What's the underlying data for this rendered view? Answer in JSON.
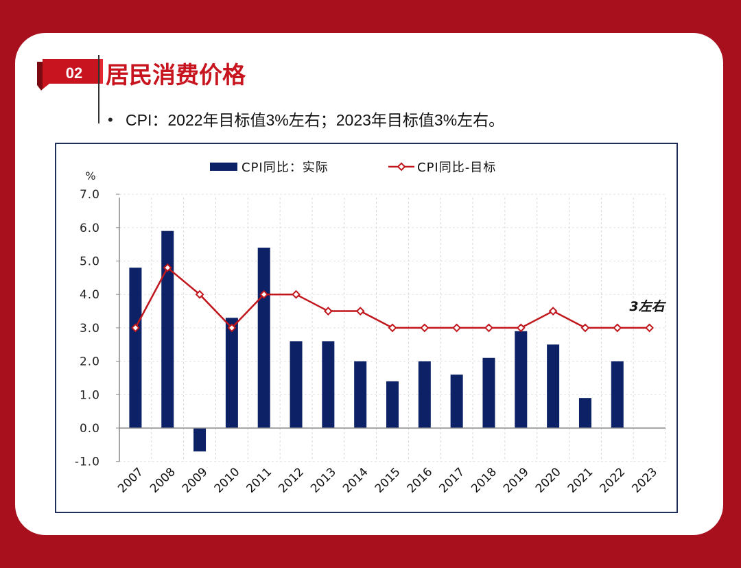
{
  "header": {
    "section_number": "02",
    "title": "居民消费价格",
    "bullet": "•",
    "subtitle": "CPI：2022年目标值3%左右；2023年目标值3%左右。"
  },
  "colors": {
    "background": "#a8101e",
    "accent_red": "#c8141e",
    "bar_navy": "#0d2266",
    "target_line": "#c0161c"
  },
  "chart_data": {
    "type": "bar",
    "categories": [
      "2007",
      "2008",
      "2009",
      "2010",
      "2011",
      "2012",
      "2013",
      "2014",
      "2015",
      "2016",
      "2017",
      "2018",
      "2019",
      "2020",
      "2021",
      "2022",
      "2023"
    ],
    "ylabel": "%",
    "ylim": [
      -1.0,
      7.0
    ],
    "yticks": [
      "7.0",
      "6.0",
      "5.0",
      "4.0",
      "3.0",
      "2.0",
      "1.0",
      "0.0",
      "-1.0"
    ],
    "grid": true,
    "legend_position": "top",
    "series": [
      {
        "name": "CPI同比：实际",
        "type": "bar",
        "values": [
          4.8,
          5.9,
          -0.7,
          3.3,
          5.4,
          2.6,
          2.6,
          2.0,
          1.4,
          2.0,
          1.6,
          2.1,
          2.9,
          2.5,
          0.9,
          2.0,
          null
        ]
      },
      {
        "name": "CPI同比-目标",
        "type": "line",
        "values": [
          3.0,
          4.8,
          4.0,
          3.0,
          4.0,
          4.0,
          3.5,
          3.5,
          3.0,
          3.0,
          3.0,
          3.0,
          3.0,
          3.5,
          3.0,
          3.0,
          3.0
        ]
      }
    ],
    "annotation": "3左右"
  }
}
